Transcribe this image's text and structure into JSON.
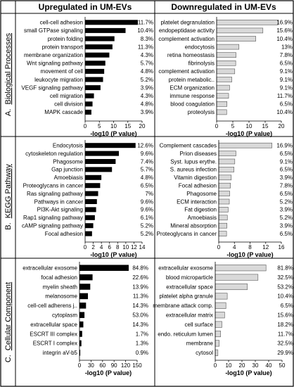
{
  "header": {
    "left": "Upregulated in UM-EVs",
    "right": "Downregulated in UM-EVs"
  },
  "sections": [
    {
      "letter": "A.",
      "title": "Biological Processes"
    },
    {
      "letter": "B.",
      "title": "KEGG Pathway"
    },
    {
      "letter": "C.",
      "title": "Cellular Component"
    }
  ],
  "colors": {
    "up_bar": "#000000",
    "down_bar": "#d9d9d9",
    "down_stroke": "#555555",
    "grid_line": "#000000"
  },
  "chart_data": [
    {
      "type": "bar",
      "orientation": "horizontal",
      "section": "A",
      "side": "up",
      "categories": [
        "cell-cell adhesion",
        "small GTPase signaling",
        "protein folding",
        "protein transport",
        "membrane organization",
        "Wnt signaling pathway",
        "movement of cell",
        "leukocyte migration",
        "VEGF signaling pathway",
        "cell migration",
        "cell division",
        "MAPK cascade"
      ],
      "values": [
        18.5,
        14.2,
        10.3,
        9.6,
        8.5,
        7.1,
        6.7,
        6.3,
        5.4,
        3.1,
        2.6,
        2.2
      ],
      "labels": [
        "11.7%",
        "10.4%",
        "8.3%",
        "11.3%",
        "4.3%",
        "5.7%",
        "4.8%",
        "5.2%",
        "3.9%",
        "4.3%",
        "4.8%",
        "3.9%"
      ],
      "xlabel": "-log10 (P value)",
      "xlim": [
        0,
        20
      ],
      "ticks": [
        0,
        5,
        10,
        15,
        20
      ]
    },
    {
      "type": "bar",
      "orientation": "horizontal",
      "section": "A",
      "side": "down",
      "categories": [
        "platelet degranulation",
        "endopeptidase activity",
        "complement activation",
        "endocytosis",
        "retina homeostasis",
        "fibrinolysis",
        "complement activation",
        "protein metabolic..",
        "ECM organization",
        "immune response",
        "blood coagulation",
        "proteolysis"
      ],
      "values": [
        19.0,
        14.3,
        12.1,
        6.9,
        6.0,
        5.9,
        5.6,
        4.7,
        4.0,
        3.7,
        3.2,
        3.1
      ],
      "labels": [
        "16.9%",
        "15.6%",
        "10.4%",
        "13%",
        "7.8%",
        "6.5%",
        "9.1%",
        "9.1%",
        "9.1%",
        "11.7%",
        "6.5%",
        "10.4%"
      ],
      "xlabel": "-log10 (P value)",
      "xlim": [
        0,
        20
      ],
      "ticks": [
        0,
        5,
        10,
        15,
        20
      ]
    },
    {
      "type": "bar",
      "orientation": "horizontal",
      "section": "B",
      "side": "up",
      "categories": [
        "Endocytosis",
        "cytoskeleton regulation",
        "Phagosome",
        "Gap junction",
        "Amoebiasis",
        "Proteoglycans in cancer",
        "Ras signaling pathway",
        "Pathways in cancer",
        "PI3K-Akt signaling",
        "Rap1 signaling pathway",
        "cAMP signaling pathway",
        "Focal adhesion"
      ],
      "values": [
        12.4,
        8.3,
        7.5,
        6.6,
        4.0,
        3.7,
        3.2,
        2.9,
        2.7,
        2.4,
        2.0,
        1.7
      ],
      "labels": [
        "12.6%",
        "9.6%",
        "7.4%",
        "5.7%",
        "4.8%",
        "6.5%",
        "7%",
        "9.6%",
        "9.6%",
        "6.1%",
        "5.2%",
        "5.2%"
      ],
      "xlabel": "-log10 (P value)",
      "xlim": [
        0,
        14
      ],
      "ticks": [
        0,
        2,
        4,
        6,
        8,
        10,
        12,
        14
      ]
    },
    {
      "type": "bar",
      "orientation": "horizontal",
      "section": "B",
      "side": "down",
      "categories": [
        "Complement cascades",
        "Prion diseases",
        "Syst. lupus erythe.",
        "S. aureus infection",
        "Vitamin digestion",
        "Focal adhesion",
        "Phagosome",
        "ECM interaction",
        "Fat digestion",
        "Amoebiasis",
        "Mineral absorption",
        "Proteoglycans in cancer"
      ],
      "values": [
        13.6,
        4.4,
        4.1,
        3.9,
        3.2,
        3.0,
        2.8,
        2.7,
        2.4,
        2.2,
        2.1,
        2.0
      ],
      "labels": [
        "16.9%",
        "6.5%",
        "9.1%",
        "6.5%",
        "3.9%",
        "7.8%",
        "6.5%",
        "5.2%",
        "3.9%",
        "5.2%",
        "3.9%",
        "6.5%"
      ],
      "xlabel": "-log10 (P value)",
      "xlim": [
        0,
        16
      ],
      "ticks": [
        0,
        4,
        8,
        12,
        16
      ]
    },
    {
      "type": "bar",
      "orientation": "horizontal",
      "section": "C",
      "side": "up",
      "categories": [
        "extracellular exosome",
        "focal adhesion",
        "myelin sheath",
        "melanosome",
        "cell-cell adherens j..",
        "cytoplasm",
        "extracellular space",
        "ESCRT III complex",
        "ESCRT I complex",
        "integrin aV-b5"
      ],
      "values": [
        128,
        34,
        28,
        22,
        17,
        13,
        10,
        7,
        5,
        2
      ],
      "labels": [
        "84.8%",
        "22.6%",
        "13.9%",
        "11.3%",
        "14.3%",
        "53.0%",
        "14.3%",
        "1.7%",
        "1.3%",
        "0.9%"
      ],
      "xlabel": "-log10 (P value)",
      "xlim": [
        0,
        150
      ],
      "ticks": [
        0,
        30,
        60,
        90,
        120,
        150
      ]
    },
    {
      "type": "bar",
      "orientation": "horizontal",
      "section": "C",
      "side": "down",
      "categories": [
        "extracellular exosome",
        "blood microparticle",
        "extracellular space",
        "platelet alpha granule",
        "membrane attack comp.",
        "extracellular matrix",
        "cell surface",
        "endo. reticulum lumen",
        "membrane",
        "cytosol"
      ],
      "values": [
        38,
        32,
        24,
        9,
        8,
        7,
        5,
        4,
        3,
        2
      ],
      "labels": [
        "81.8%",
        "32.5%",
        "53.2%",
        "10.4%",
        "6.5%",
        "15.6%",
        "18.2%",
        "11.7%",
        "32.5%",
        "29.9%"
      ],
      "xlabel": "-log10 (P value)",
      "xlim": [
        0,
        50
      ],
      "ticks": [
        0,
        10,
        20,
        30,
        40,
        50
      ]
    }
  ]
}
